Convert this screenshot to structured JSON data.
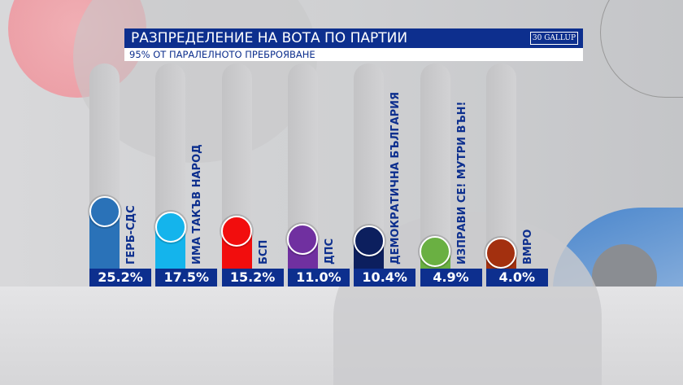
{
  "header": {
    "title": "РАЗПРЕДЕЛЕНИЕ НА ВОТА ПО ПАРТИИ",
    "subtitle": "95% ОТ ПАРАЛЕЛНОТО ПРЕБРОЯВАНЕ",
    "logo": "30 GALLUP"
  },
  "chart_data": {
    "type": "bar",
    "title": "РАЗПРЕДЕЛЕНИЕ НА ВОТА ПО ПАРТИИ",
    "subtitle": "95% ОТ ПАРАЛЕЛНОТО ПРЕБРОЯВАНЕ",
    "categories": [
      "ГЕРБ-СДС",
      "ИМА ТАКЪВ НАРОД",
      "БСП",
      "ДПС",
      "ДЕМОКРАТИЧНА БЪЛГАРИЯ",
      "ИЗПРАВИ СЕ! МУТРИ ВЪН!",
      "ВМРО"
    ],
    "values": [
      25.2,
      17.5,
      15.2,
      11.0,
      10.4,
      4.9,
      4.0
    ],
    "labels": [
      "25.2%",
      "17.5%",
      "15.2%",
      "11.0%",
      "10.4%",
      "4.9%",
      "4.0%"
    ],
    "colors": [
      "#2a72b8",
      "#14b4ec",
      "#f20d0d",
      "#7030a0",
      "#0c1f5e",
      "#6ab042",
      "#a3300f"
    ],
    "unit": "%"
  }
}
